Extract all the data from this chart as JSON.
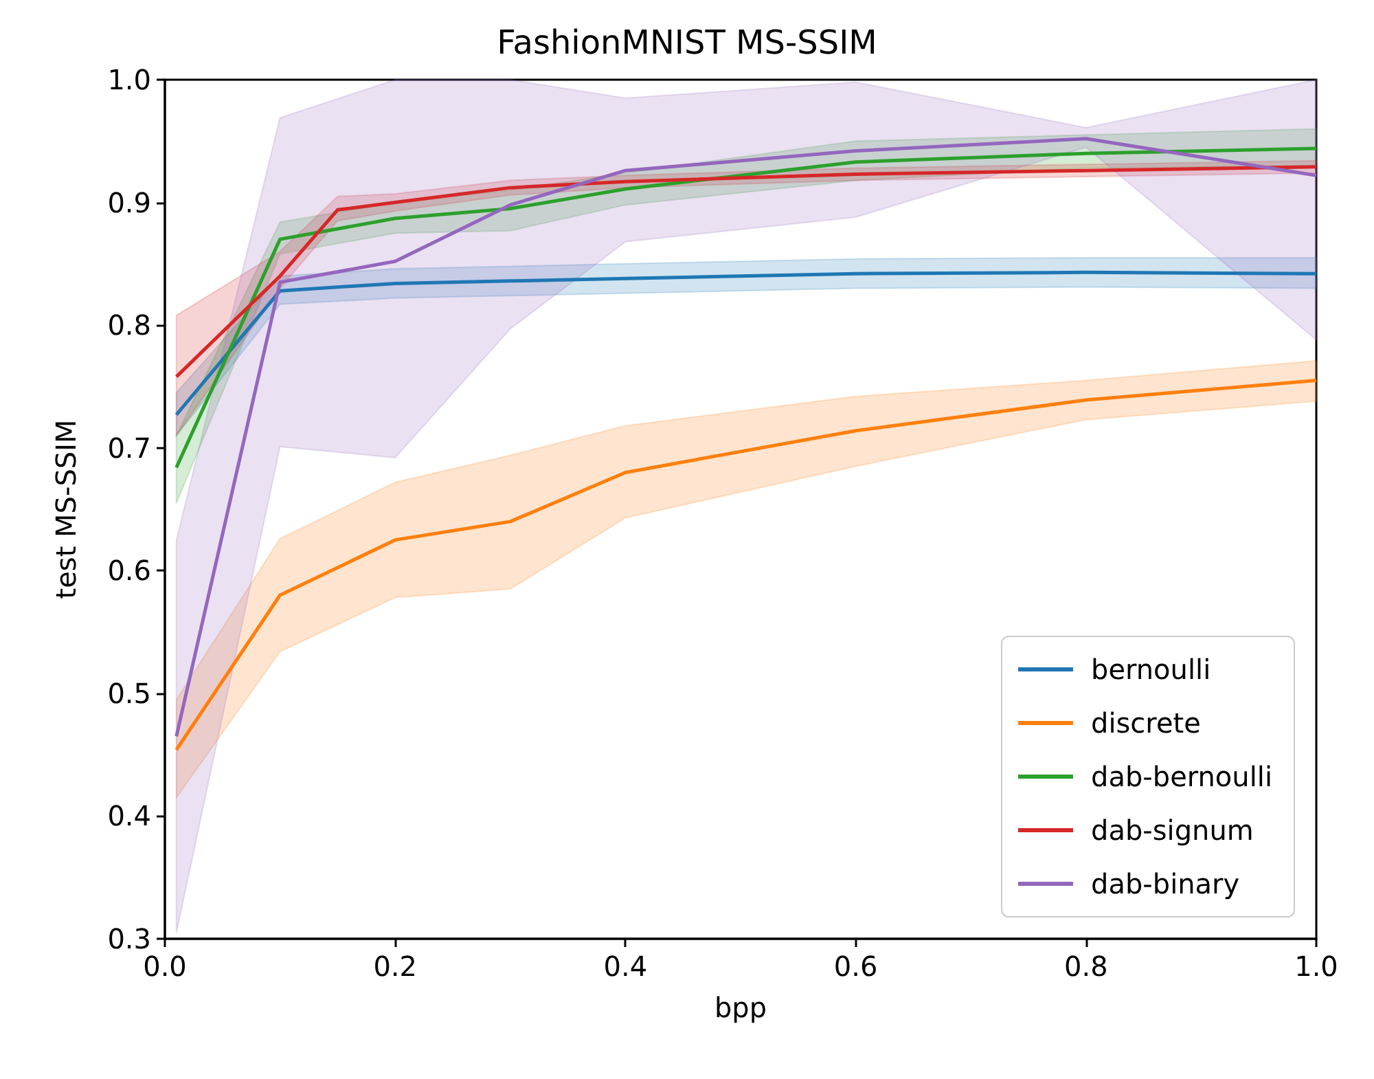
{
  "chart_data": {
    "type": "line",
    "title": "FashionMNIST MS-SSIM",
    "xlabel": "bpp",
    "ylabel": "test MS-SSIM",
    "xlim": [
      0,
      1
    ],
    "xticks": [
      {
        "value": 0,
        "label": "0.0"
      },
      0.2,
      0.4,
      0.6,
      0.8,
      {
        "value": 1,
        "label": "1.0"
      }
    ],
    "ylim": [
      0.3,
      1
    ],
    "yticks": [
      0.3,
      0.4,
      0.5,
      0.6,
      0.7,
      0.8,
      0.9,
      {
        "value": 1,
        "label": "1.0"
      }
    ],
    "legend": "bottom right",
    "grid": false,
    "marker": "none",
    "line_style": "solid",
    "series": [
      {
        "name": "bernoulli",
        "color": "#1f77b4",
        "x": [
          0.01,
          0.1,
          0.2,
          0.3,
          0.4,
          0.6,
          0.8,
          1.0
        ],
        "values": [
          0.727,
          0.828,
          0.834,
          0.836,
          0.838,
          0.842,
          0.843,
          0.842
        ],
        "lower": [
          0.71,
          0.817,
          0.822,
          0.824,
          0.826,
          0.83,
          0.831,
          0.83
        ],
        "upper": [
          0.745,
          0.84,
          0.846,
          0.848,
          0.85,
          0.854,
          0.855,
          0.855
        ]
      },
      {
        "name": "discrete",
        "color": "#ff7f0e",
        "x": [
          0.01,
          0.1,
          0.2,
          0.3,
          0.4,
          0.6,
          0.8,
          1.0
        ],
        "values": [
          0.454,
          0.58,
          0.625,
          0.64,
          0.68,
          0.714,
          0.739,
          0.755
        ],
        "lower": [
          0.415,
          0.534,
          0.578,
          0.585,
          0.643,
          0.685,
          0.723,
          0.738
        ],
        "upper": [
          0.495,
          0.626,
          0.672,
          0.694,
          0.718,
          0.742,
          0.755,
          0.771
        ]
      },
      {
        "name": "dab-bernoulli",
        "color": "#2ca02c",
        "x": [
          0.01,
          0.1,
          0.2,
          0.3,
          0.4,
          0.6,
          0.8,
          1.0
        ],
        "values": [
          0.684,
          0.87,
          0.887,
          0.895,
          0.911,
          0.933,
          0.94,
          0.944
        ],
        "lower": [
          0.655,
          0.858,
          0.875,
          0.877,
          0.898,
          0.918,
          0.928,
          0.93
        ],
        "upper": [
          0.71,
          0.884,
          0.9,
          0.91,
          0.924,
          0.95,
          0.955,
          0.96
        ]
      },
      {
        "name": "dab-signum",
        "color": "#d62728",
        "x": [
          0.01,
          0.1,
          0.15,
          0.2,
          0.3,
          0.4,
          0.6,
          0.8,
          1.0
        ],
        "values": [
          0.758,
          0.84,
          0.894,
          0.9,
          0.912,
          0.917,
          0.923,
          0.926,
          0.929
        ],
        "lower": [
          0.71,
          0.83,
          0.885,
          0.893,
          0.906,
          0.912,
          0.918,
          0.921,
          0.924
        ],
        "upper": [
          0.808,
          0.86,
          0.905,
          0.907,
          0.918,
          0.922,
          0.928,
          0.931,
          0.934
        ]
      },
      {
        "name": "dab-binary",
        "color": "#9467bd",
        "x": [
          0.01,
          0.1,
          0.2,
          0.3,
          0.4,
          0.6,
          0.8,
          1.0
        ],
        "values": [
          0.465,
          0.835,
          0.852,
          0.898,
          0.926,
          0.942,
          0.952,
          0.922
        ],
        "lower": [
          0.305,
          0.701,
          0.692,
          0.797,
          0.868,
          0.888,
          0.945,
          0.788
        ],
        "upper": [
          0.625,
          0.969,
          1.0,
          1.0,
          0.985,
          0.998,
          0.961,
          1.0
        ]
      }
    ]
  }
}
